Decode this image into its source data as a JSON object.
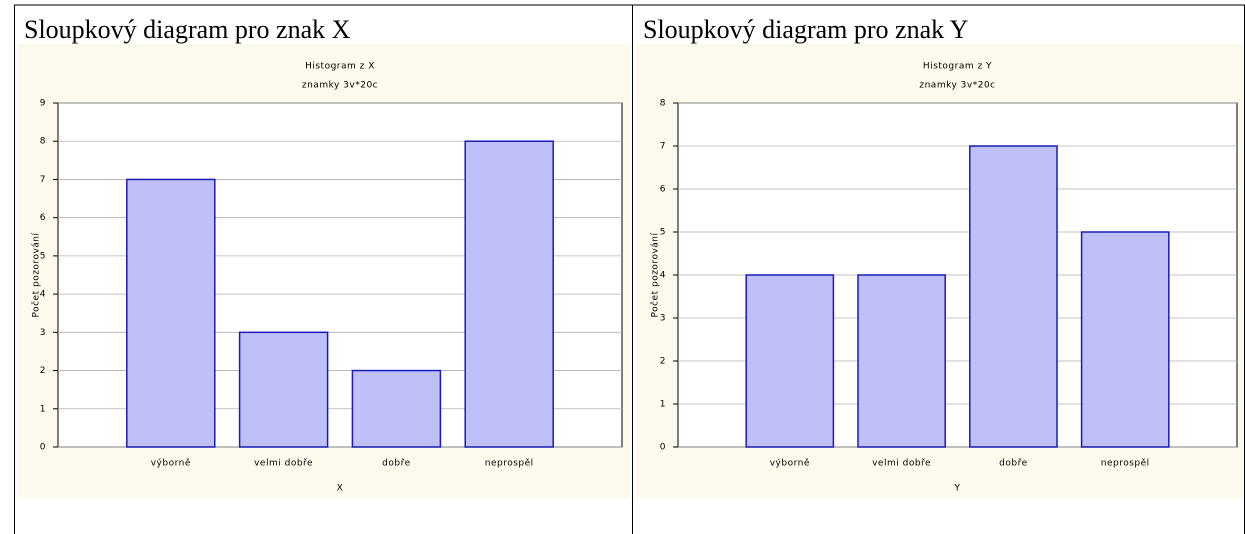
{
  "chart_data": [
    {
      "type": "bar",
      "heading": "Sloupkový diagram pro znak X",
      "title": "Histogram z X",
      "subtitle": "znamky 3v*20c",
      "xlabel": "X",
      "ylabel": "Počet pozorování",
      "categories": [
        "výborně",
        "velmi dobře",
        "dobře",
        "neprospěl"
      ],
      "values": [
        7,
        3,
        2,
        8
      ],
      "color": "#c0c0f8",
      "edge_color": "#1a1ab8",
      "ylim": [
        0,
        9
      ],
      "yticks": [
        0,
        1,
        2,
        3,
        4,
        5,
        6,
        7,
        8,
        9
      ],
      "grid": true
    },
    {
      "type": "bar",
      "heading": "Sloupkový diagram pro znak Y",
      "title": "Histogram z Y",
      "subtitle": "znamky 3v*20c",
      "xlabel": "Y",
      "ylabel": "Počet pozorování",
      "categories": [
        "výborně",
        "velmi dobře",
        "dobře",
        "neprospěl"
      ],
      "values": [
        4,
        4,
        7,
        5
      ],
      "color": "#c0c0f8",
      "edge_color": "#1a1ab8",
      "ylim": [
        0,
        8
      ],
      "yticks": [
        0,
        1,
        2,
        3,
        4,
        5,
        6,
        7,
        8
      ],
      "grid": true
    }
  ]
}
